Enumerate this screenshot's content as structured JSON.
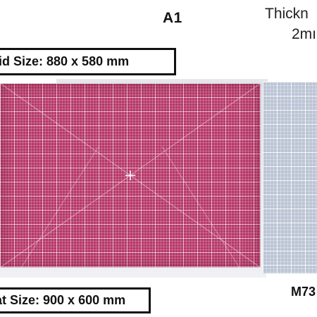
{
  "product": {
    "size_title": "A1",
    "thickness_line1": "Thickn",
    "thickness_line2": "2mı",
    "grid_size_label": "rid Size:  880 x 580 mm",
    "mat_size_label": "at Size: 900 x 600 mm",
    "model_code": "M73"
  },
  "colors": {
    "pink_mat": "#b63869",
    "grey_mat": "#bcc5d5",
    "grid_line": "#ffffff"
  }
}
